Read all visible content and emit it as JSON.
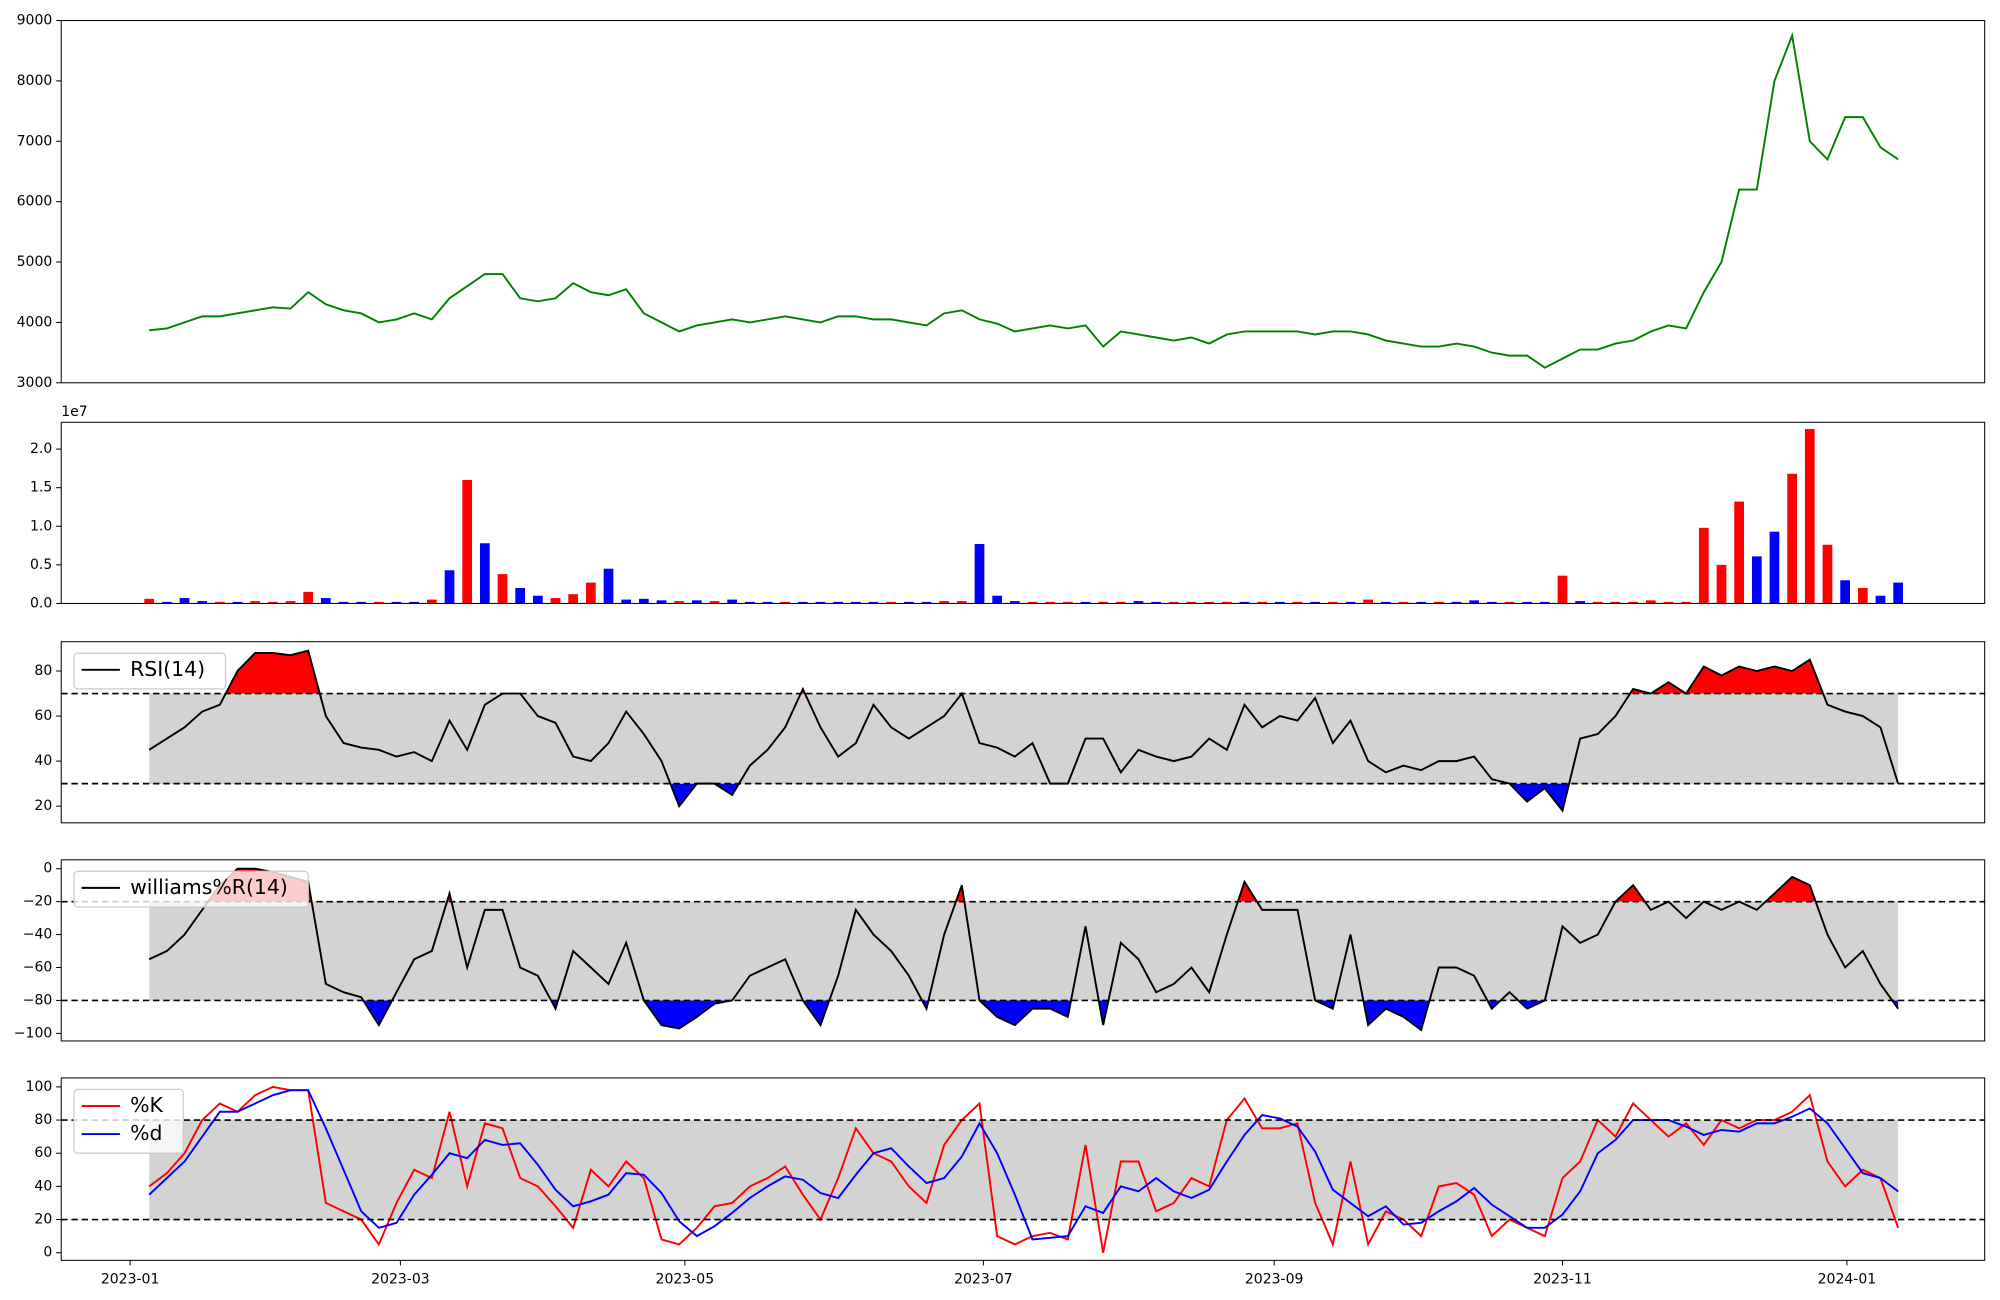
{
  "chart_data": [
    {
      "type": "line",
      "xlim": [
        -4.98,
        103.9
      ],
      "ylim": [
        3000,
        9000
      ],
      "yticks": [
        3000,
        4000,
        5000,
        6000,
        7000,
        8000,
        9000
      ],
      "series": [
        {
          "color": "#008000",
          "values": [
            3870,
            3900,
            4000,
            4100,
            4100,
            4150,
            4200,
            4250,
            4230,
            4500,
            4300,
            4200,
            4150,
            4000,
            4050,
            4150,
            4050,
            4400,
            4600,
            4800,
            4800,
            4400,
            4350,
            4400,
            4650,
            4500,
            4450,
            4550,
            4150,
            4000,
            3850,
            3950,
            4000,
            4050,
            4000,
            4050,
            4100,
            4050,
            4000,
            4100,
            4100,
            4050,
            4050,
            4000,
            3950,
            4150,
            4200,
            4050,
            3980,
            3850,
            3900,
            3950,
            3900,
            3950,
            3600,
            3850,
            3800,
            3750,
            3700,
            3750,
            3650,
            3800,
            3850,
            3850,
            3850,
            3850,
            3800,
            3850,
            3850,
            3800,
            3700,
            3650,
            3600,
            3600,
            3650,
            3600,
            3500,
            3450,
            3450,
            3250,
            3400,
            3550,
            3550,
            3650,
            3700,
            3850,
            3950,
            3900,
            4500,
            5000,
            6200,
            6200,
            8000,
            8750,
            7000,
            6700,
            7400,
            7400,
            6900,
            6700
          ]
        }
      ]
    },
    {
      "type": "bar",
      "xlim": [
        -4.98,
        103.9
      ],
      "ylim": [
        0,
        2.347
      ],
      "offset_label": "1e7",
      "yticks": [
        {
          "value": 0,
          "label": "0.0"
        },
        0.5,
        {
          "value": 1,
          "label": "1.0"
        },
        1.5,
        {
          "value": 2,
          "label": "2.0"
        }
      ],
      "values": [
        0.06,
        0.02,
        0.07,
        0.03,
        0.02,
        0.02,
        0.03,
        0.02,
        0.03,
        0.15,
        0.07,
        0.02,
        0.02,
        0.02,
        0.02,
        0.02,
        0.05,
        0.43,
        1.6,
        0.78,
        0.38,
        0.2,
        0.1,
        0.07,
        0.12,
        0.27,
        0.45,
        0.05,
        0.06,
        0.04,
        0.03,
        0.04,
        0.03,
        0.05,
        0.02,
        0.02,
        0.02,
        0.02,
        0.02,
        0.02,
        0.02,
        0.02,
        0.02,
        0.02,
        0.02,
        0.03,
        0.03,
        0.77,
        0.1,
        0.03,
        0.02,
        0.02,
        0.02,
        0.02,
        0.02,
        0.02,
        0.03,
        0.02,
        0.02,
        0.02,
        0.02,
        0.02,
        0.02,
        0.02,
        0.02,
        0.02,
        0.02,
        0.02,
        0.02,
        0.05,
        0.02,
        0.02,
        0.02,
        0.02,
        0.02,
        0.04,
        0.02,
        0.02,
        0.02,
        0.02,
        0.36,
        0.03,
        0.02,
        0.02,
        0.02,
        0.04,
        0.02,
        0.02,
        0.98,
        0.5,
        1.32,
        0.61,
        0.93,
        1.68,
        2.26,
        0.76,
        0.3,
        0.2,
        0.1,
        0.27
      ],
      "colors": [
        "red",
        "blue",
        "blue",
        "blue",
        "red",
        "blue",
        "red",
        "red",
        "red",
        "red",
        "blue",
        "blue",
        "blue",
        "red",
        "blue",
        "blue",
        "red",
        "blue",
        "red",
        "blue",
        "red",
        "blue",
        "blue",
        "red",
        "red",
        "red",
        "blue",
        "blue",
        "blue",
        "blue",
        "red",
        "blue",
        "red",
        "blue",
        "blue",
        "blue",
        "red",
        "blue",
        "blue",
        "blue",
        "blue",
        "blue",
        "red",
        "blue",
        "blue",
        "red",
        "red",
        "blue",
        "blue",
        "blue",
        "red",
        "red",
        "red",
        "blue",
        "red",
        "red",
        "blue",
        "blue",
        "red",
        "red",
        "red",
        "red",
        "blue",
        "red",
        "blue",
        "red",
        "blue",
        "red",
        "blue",
        "red",
        "blue",
        "red",
        "blue",
        "red",
        "blue",
        "blue",
        "blue",
        "red",
        "blue",
        "blue",
        "red",
        "blue",
        "red",
        "red",
        "red",
        "red",
        "red",
        "red",
        "red",
        "red",
        "red",
        "blue",
        "blue",
        "red",
        "red",
        "red",
        "blue",
        "red",
        "blue",
        "blue"
      ]
    },
    {
      "type": "line",
      "xlim": [
        -4.98,
        103.9
      ],
      "ylim": [
        12.6,
        93
      ],
      "yticks": [
        20,
        40,
        60,
        80
      ],
      "levels": [
        70,
        30
      ],
      "level_fill": [
        "red",
        "blue"
      ],
      "band_color": "#d3d3d3",
      "series": [
        {
          "name": "RSI(14)",
          "color": "black",
          "values": [
            45,
            50,
            55,
            62,
            65,
            80,
            88,
            88,
            87,
            89,
            60,
            48,
            46,
            45,
            42,
            44,
            40,
            58,
            45,
            65,
            70,
            70,
            60,
            57,
            42,
            40,
            48,
            62,
            52,
            40,
            20,
            30,
            30,
            25,
            38,
            45,
            55,
            72,
            55,
            42,
            48,
            65,
            55,
            50,
            55,
            60,
            70,
            48,
            46,
            42,
            48,
            30,
            30,
            50,
            50,
            35,
            45,
            42,
            40,
            42,
            50,
            45,
            65,
            55,
            60,
            58,
            68,
            48,
            58,
            40,
            35,
            38,
            36,
            40,
            40,
            42,
            32,
            30,
            22,
            28,
            18,
            50,
            52,
            60,
            72,
            70,
            75,
            70,
            82,
            78,
            82,
            80,
            82,
            80,
            85,
            65,
            62,
            60,
            55,
            30
          ]
        }
      ]
    },
    {
      "type": "line",
      "xlim": [
        -4.98,
        103.9
      ],
      "ylim": [
        -104.6,
        5.4
      ],
      "yticks": [
        0,
        {
          "value": -20,
          "label": "−20"
        },
        {
          "value": -40,
          "label": "−40"
        },
        {
          "value": -60,
          "label": "−60"
        },
        {
          "value": -80,
          "label": "−80"
        },
        {
          "value": -100,
          "label": "−100"
        }
      ],
      "levels": [
        -20,
        -80
      ],
      "level_fill": [
        "red",
        "blue"
      ],
      "band_color": "#d3d3d3",
      "series": [
        {
          "name": "williams%R(14)",
          "color": "black",
          "values": [
            -55,
            -50,
            -40,
            -25,
            -10,
            0,
            0,
            -2,
            -5,
            -8,
            -70,
            -75,
            -78,
            -95,
            -75,
            -55,
            -50,
            -15,
            -60,
            -25,
            -25,
            -60,
            -65,
            -85,
            -50,
            -60,
            -70,
            -45,
            -80,
            -95,
            -97,
            -90,
            -82,
            -80,
            -65,
            -60,
            -55,
            -80,
            -95,
            -65,
            -25,
            -40,
            -50,
            -65,
            -85,
            -40,
            -10,
            -80,
            -90,
            -95,
            -85,
            -85,
            -90,
            -35,
            -95,
            -45,
            -55,
            -75,
            -70,
            -60,
            -75,
            -40,
            -8,
            -25,
            -25,
            -25,
            -80,
            -85,
            -40,
            -95,
            -85,
            -90,
            -98,
            -60,
            -60,
            -65,
            -85,
            -75,
            -85,
            -80,
            -35,
            -45,
            -40,
            -20,
            -10,
            -25,
            -20,
            -30,
            -20,
            -25,
            -20,
            -25,
            -15,
            -5,
            -10,
            -40,
            -60,
            -50,
            -70,
            -85
          ]
        }
      ]
    },
    {
      "type": "line",
      "xlim": [
        -4.98,
        103.9
      ],
      "ylim": [
        -4.6,
        105.4
      ],
      "yticks": [
        0,
        20,
        40,
        60,
        80,
        100
      ],
      "levels": [
        80,
        20
      ],
      "band_color": "#d3d3d3",
      "xticks": [
        {
          "value": -1.08,
          "label": "2023-01"
        },
        {
          "value": 14.22,
          "label": "2023-03"
        },
        {
          "value": 30.32,
          "label": "2023-05"
        },
        {
          "value": 47.22,
          "label": "2023-07"
        },
        {
          "value": 63.68,
          "label": "2023-09"
        },
        {
          "value": 80.0,
          "label": "2023-11"
        },
        {
          "value": 96.1,
          "label": "2024-01"
        }
      ],
      "series": [
        {
          "name": "%K",
          "color": "red",
          "values": [
            40,
            48,
            60,
            80,
            90,
            85,
            95,
            100,
            98,
            98,
            30,
            25,
            20,
            5,
            30,
            50,
            45,
            85,
            40,
            78,
            75,
            45,
            40,
            28,
            15,
            50,
            40,
            55,
            45,
            8,
            5,
            15,
            28,
            30,
            40,
            45,
            52,
            35,
            20,
            45,
            75,
            60,
            55,
            40,
            30,
            65,
            80,
            90,
            10,
            5,
            10,
            12,
            8,
            65,
            0,
            55,
            55,
            25,
            30,
            45,
            40,
            80,
            93,
            75,
            75,
            78,
            30,
            5,
            55,
            5,
            25,
            20,
            10,
            40,
            42,
            35,
            10,
            20,
            15,
            10,
            45,
            55,
            80,
            70,
            90,
            80,
            70,
            78,
            65,
            80,
            75,
            80,
            80,
            85,
            95,
            55,
            40,
            50,
            45,
            15
          ]
        },
        {
          "name": "%d",
          "color": "blue",
          "values": [
            35,
            45,
            55,
            70,
            85,
            85,
            90,
            95,
            98,
            98,
            75,
            50,
            25,
            15,
            18,
            35,
            47,
            60,
            57,
            68,
            65,
            66,
            53,
            38,
            28,
            31,
            35,
            48,
            47,
            36,
            19,
            10,
            16,
            24,
            33,
            40,
            46,
            44,
            36,
            33,
            47,
            60,
            63,
            52,
            42,
            45,
            58,
            78,
            60,
            35,
            8,
            9,
            10,
            28,
            24,
            40,
            37,
            45,
            37,
            33,
            38,
            55,
            71,
            83,
            81,
            76,
            61,
            38,
            30,
            22,
            28,
            17,
            18,
            25,
            31,
            39,
            29,
            22,
            15,
            15,
            23,
            37,
            60,
            68,
            80,
            80,
            80,
            76,
            71,
            74,
            73,
            78,
            78,
            82,
            87,
            78,
            63,
            48,
            45,
            37
          ]
        }
      ]
    }
  ]
}
